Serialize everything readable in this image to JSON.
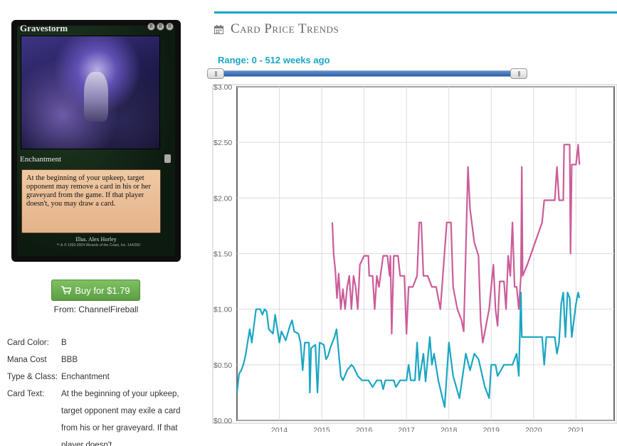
{
  "card": {
    "name": "Gravestorm",
    "mana_symbols": [
      "B",
      "B",
      "B"
    ],
    "type_line": "Enchantment",
    "text": "At the beginning of your upkeep, target opponent may remove a card in his or her graveyard from the game. If that player doesn't, you may draw a card.",
    "illustrator": "Illus. Alex Horley",
    "copyright": "™ & © 1993-2004 Wizards of the Coast, Inc. 144/350"
  },
  "buy": {
    "label": "Buy for $1.79",
    "from": "From: ChannelFireball"
  },
  "details": [
    {
      "label": "Card Color:",
      "value": "B"
    },
    {
      "label": "Mana Cost",
      "value": "BBB"
    },
    {
      "label": "Type & Class:",
      "value": "Enchantment"
    },
    {
      "label": "Card Text:",
      "value": "At the beginning of your upkeep, target opponent may exile a card from his or her graveyard. If that player doesn't,"
    }
  ],
  "panel": {
    "title": "Card Price Trends",
    "range_label": "Range: 0 - 512 weeks ago",
    "slider": {
      "min_weeks": 0,
      "max_weeks": 512,
      "selected_from": 0,
      "selected_to": 512
    },
    "accent_color": "#1aa6c4"
  },
  "chart_data": {
    "type": "line",
    "ylim": [
      0,
      3
    ],
    "xlim": [
      2013.0,
      2021.9
    ],
    "y_ticks": [
      "$0.00",
      "$0.50",
      "$1.00",
      "$1.50",
      "$2.00",
      "$2.50",
      "$3.00"
    ],
    "x_ticks": [
      "2014",
      "2015",
      "2016",
      "2017",
      "2018",
      "2019",
      "2020",
      "2021"
    ],
    "grid": true,
    "series": [
      {
        "color": "#cc5c99",
        "points": [
          [
            2015.25,
            1.78
          ],
          [
            2015.28,
            1.5
          ],
          [
            2015.32,
            1.35
          ],
          [
            2015.36,
            1.1
          ],
          [
            2015.4,
            1.32
          ],
          [
            2015.45,
            1.0
          ],
          [
            2015.5,
            1.18
          ],
          [
            2015.55,
            1.0
          ],
          [
            2015.6,
            1.2
          ],
          [
            2015.65,
            1.3
          ],
          [
            2015.7,
            1.0
          ],
          [
            2015.75,
            1.3
          ],
          [
            2015.8,
            1.2
          ],
          [
            2015.85,
            1.0
          ],
          [
            2015.9,
            1.4
          ],
          [
            2016.0,
            1.48
          ],
          [
            2016.1,
            1.48
          ],
          [
            2016.12,
            1.3
          ],
          [
            2016.2,
            1.3
          ],
          [
            2016.25,
            1.0
          ],
          [
            2016.3,
            1.3
          ],
          [
            2016.35,
            1.2
          ],
          [
            2016.45,
            1.48
          ],
          [
            2016.55,
            1.48
          ],
          [
            2016.6,
            1.3
          ],
          [
            2016.62,
            1.48
          ],
          [
            2016.65,
            0.78
          ],
          [
            2016.7,
            1.48
          ],
          [
            2016.8,
            1.48
          ],
          [
            2016.85,
            1.3
          ],
          [
            2016.95,
            1.3
          ],
          [
            2017.0,
            0.78
          ],
          [
            2017.05,
            1.2
          ],
          [
            2017.15,
            1.2
          ],
          [
            2017.25,
            1.3
          ],
          [
            2017.3,
            1.78
          ],
          [
            2017.35,
            1.78
          ],
          [
            2017.4,
            1.3
          ],
          [
            2017.5,
            1.3
          ],
          [
            2017.6,
            1.2
          ],
          [
            2017.7,
            1.2
          ],
          [
            2017.8,
            1.0
          ],
          [
            2017.95,
            1.78
          ],
          [
            2018.05,
            1.78
          ],
          [
            2018.1,
            1.2
          ],
          [
            2018.2,
            1.0
          ],
          [
            2018.3,
            0.9
          ],
          [
            2018.35,
            0.8
          ],
          [
            2018.45,
            2.28
          ],
          [
            2018.5,
            1.9
          ],
          [
            2018.6,
            1.6
          ],
          [
            2018.7,
            1.48
          ],
          [
            2018.75,
            0.9
          ],
          [
            2018.8,
            0.7
          ],
          [
            2018.85,
            0.8
          ],
          [
            2018.95,
            1.0
          ],
          [
            2019.05,
            1.4
          ],
          [
            2019.1,
            1.0
          ],
          [
            2019.15,
            0.85
          ],
          [
            2019.2,
            1.25
          ],
          [
            2019.3,
            1.25
          ],
          [
            2019.35,
            1.0
          ],
          [
            2019.4,
            1.48
          ],
          [
            2019.45,
            1.3
          ],
          [
            2019.5,
            1.78
          ],
          [
            2019.55,
            1.2
          ],
          [
            2019.6,
            1.2
          ],
          [
            2019.65,
            1.0
          ],
          [
            2019.7,
            1.3
          ],
          [
            2019.72,
            2.28
          ],
          [
            2019.74,
            1.3
          ],
          [
            2019.85,
            1.4
          ],
          [
            2020.2,
            1.78
          ],
          [
            2020.25,
            1.98
          ],
          [
            2020.5,
            1.98
          ],
          [
            2020.55,
            2.28
          ],
          [
            2020.6,
            1.98
          ],
          [
            2020.7,
            1.98
          ],
          [
            2020.72,
            2.48
          ],
          [
            2020.85,
            2.48
          ],
          [
            2020.87,
            1.5
          ],
          [
            2020.9,
            2.3
          ],
          [
            2021.0,
            2.3
          ],
          [
            2021.05,
            2.48
          ],
          [
            2021.08,
            2.3
          ]
        ]
      },
      {
        "color": "#1aa6c4",
        "points": [
          [
            2013.0,
            0.25
          ],
          [
            2013.05,
            0.42
          ],
          [
            2013.1,
            0.45
          ],
          [
            2013.15,
            0.5
          ],
          [
            2013.2,
            0.58
          ],
          [
            2013.3,
            0.82
          ],
          [
            2013.35,
            0.7
          ],
          [
            2013.4,
            0.85
          ],
          [
            2013.45,
            1.0
          ],
          [
            2013.55,
            1.0
          ],
          [
            2013.6,
            0.95
          ],
          [
            2013.65,
            1.0
          ],
          [
            2013.7,
            0.98
          ],
          [
            2013.75,
            0.82
          ],
          [
            2013.85,
            0.78
          ],
          [
            2013.9,
            0.95
          ],
          [
            2014.0,
            0.7
          ],
          [
            2014.05,
            0.8
          ],
          [
            2014.15,
            0.72
          ],
          [
            2014.25,
            0.85
          ],
          [
            2014.3,
            0.9
          ],
          [
            2014.35,
            0.8
          ],
          [
            2014.45,
            0.78
          ],
          [
            2014.5,
            0.7
          ],
          [
            2014.55,
            0.45
          ],
          [
            2014.6,
            0.7
          ],
          [
            2014.7,
            0.7
          ],
          [
            2014.72,
            0.25
          ],
          [
            2014.75,
            0.65
          ],
          [
            2014.85,
            0.68
          ],
          [
            2014.9,
            0.25
          ],
          [
            2014.95,
            0.7
          ],
          [
            2015.05,
            0.68
          ],
          [
            2015.1,
            0.55
          ],
          [
            2015.15,
            0.58
          ],
          [
            2015.2,
            0.65
          ],
          [
            2015.3,
            0.75
          ],
          [
            2015.35,
            0.82
          ],
          [
            2015.45,
            0.4
          ],
          [
            2015.5,
            0.36
          ],
          [
            2015.6,
            0.45
          ],
          [
            2015.7,
            0.5
          ],
          [
            2015.75,
            0.48
          ],
          [
            2015.85,
            0.4
          ],
          [
            2015.95,
            0.36
          ],
          [
            2016.1,
            0.36
          ],
          [
            2016.2,
            0.3
          ],
          [
            2016.3,
            0.36
          ],
          [
            2016.4,
            0.36
          ],
          [
            2016.45,
            0.28
          ],
          [
            2016.5,
            0.36
          ],
          [
            2016.6,
            0.36
          ],
          [
            2016.7,
            0.36
          ],
          [
            2016.75,
            0.3
          ],
          [
            2016.85,
            0.36
          ],
          [
            2017.0,
            0.36
          ],
          [
            2017.05,
            0.5
          ],
          [
            2017.1,
            0.36
          ],
          [
            2017.2,
            0.36
          ],
          [
            2017.25,
            0.7
          ],
          [
            2017.3,
            0.36
          ],
          [
            2017.4,
            0.6
          ],
          [
            2017.45,
            0.35
          ],
          [
            2017.55,
            0.75
          ],
          [
            2017.6,
            0.5
          ],
          [
            2017.65,
            0.6
          ],
          [
            2017.75,
            0.36
          ],
          [
            2017.85,
            0.2
          ],
          [
            2017.9,
            0.12
          ],
          [
            2018.0,
            0.7
          ],
          [
            2018.1,
            0.4
          ],
          [
            2018.25,
            0.2
          ],
          [
            2018.4,
            0.6
          ],
          [
            2018.5,
            0.45
          ],
          [
            2018.6,
            0.6
          ],
          [
            2018.7,
            0.55
          ],
          [
            2018.85,
            0.3
          ],
          [
            2018.95,
            0.2
          ],
          [
            2019.0,
            0.5
          ],
          [
            2019.1,
            0.5
          ],
          [
            2019.15,
            0.4
          ],
          [
            2019.3,
            0.5
          ],
          [
            2019.5,
            0.5
          ],
          [
            2019.6,
            0.6
          ],
          [
            2019.65,
            0.4
          ],
          [
            2019.7,
            1.15
          ],
          [
            2019.72,
            0.75
          ],
          [
            2019.85,
            0.75
          ],
          [
            2020.0,
            0.75
          ],
          [
            2020.2,
            0.75
          ],
          [
            2020.25,
            0.5
          ],
          [
            2020.3,
            0.75
          ],
          [
            2020.5,
            0.75
          ],
          [
            2020.55,
            0.6
          ],
          [
            2020.6,
            0.7
          ],
          [
            2020.65,
            1.05
          ],
          [
            2020.7,
            1.15
          ],
          [
            2020.75,
            0.75
          ],
          [
            2020.8,
            1.15
          ],
          [
            2020.85,
            1.1
          ],
          [
            2020.9,
            0.75
          ],
          [
            2021.0,
            1.05
          ],
          [
            2021.05,
            1.15
          ],
          [
            2021.08,
            1.1
          ]
        ]
      }
    ]
  }
}
